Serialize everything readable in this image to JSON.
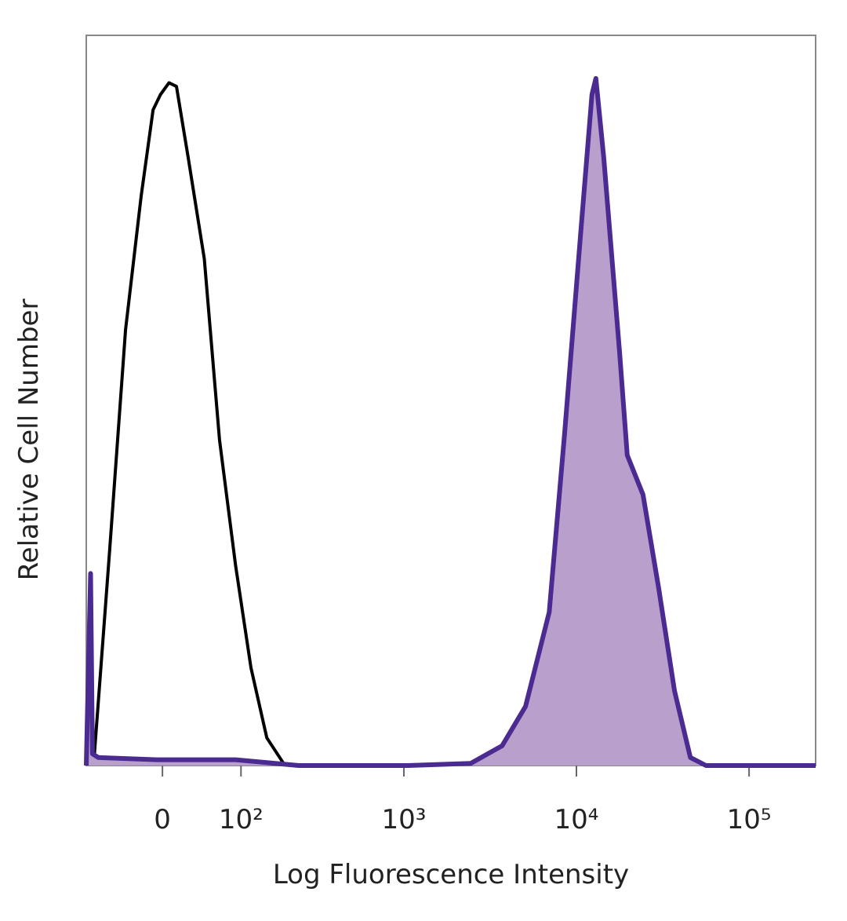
{
  "chart_data": {
    "type": "histogram-overlay",
    "xlabel": "Log Fluorescence Intensity",
    "ylabel": "Relative Cell Number",
    "xscale": "biexponential",
    "xlim": [
      -96,
      243000
    ],
    "ylim": [
      0,
      100
    ],
    "xticks": [
      0,
      {
        "value": 100,
        "label": "10²"
      },
      {
        "value": 1000,
        "label": "10³"
      },
      {
        "value": 10000,
        "label": "10⁴"
      },
      {
        "value": 100000,
        "label": "10⁵"
      }
    ],
    "series": [
      {
        "color": "#000000",
        "x": [
          -83,
          -61,
          -41,
          -23,
          -10,
          -2,
          7,
          15,
          28,
          47,
          67,
          91,
          118,
          151,
          193
        ],
        "values": [
          1.6,
          29.6,
          59.7,
          78,
          89.8,
          91.9,
          93.5,
          93,
          83.3,
          69.4,
          44.6,
          27.4,
          13.4,
          3.8,
          0.3
        ]
      },
      {
        "color": "#4b2a91",
        "fill": "#b9a0cc",
        "x": [
          -96,
          -89,
          -86,
          -77,
          -6,
          91,
          240,
          1055,
          2440,
          3710,
          5070,
          6960,
          8560,
          10560,
          12300,
          12960,
          14400,
          17800,
          19700,
          24300,
          30000,
          37000,
          45700,
          56300,
          243000
        ],
        "values": [
          0,
          26.3,
          1.6,
          1.1,
          0.8,
          0.8,
          0,
          0,
          0.3,
          2.7,
          8.1,
          21,
          45.7,
          72.6,
          91.9,
          94.1,
          83.3,
          56.5,
          42.5,
          37.1,
          24.2,
          10.2,
          1.1,
          0,
          0
        ]
      }
    ]
  }
}
